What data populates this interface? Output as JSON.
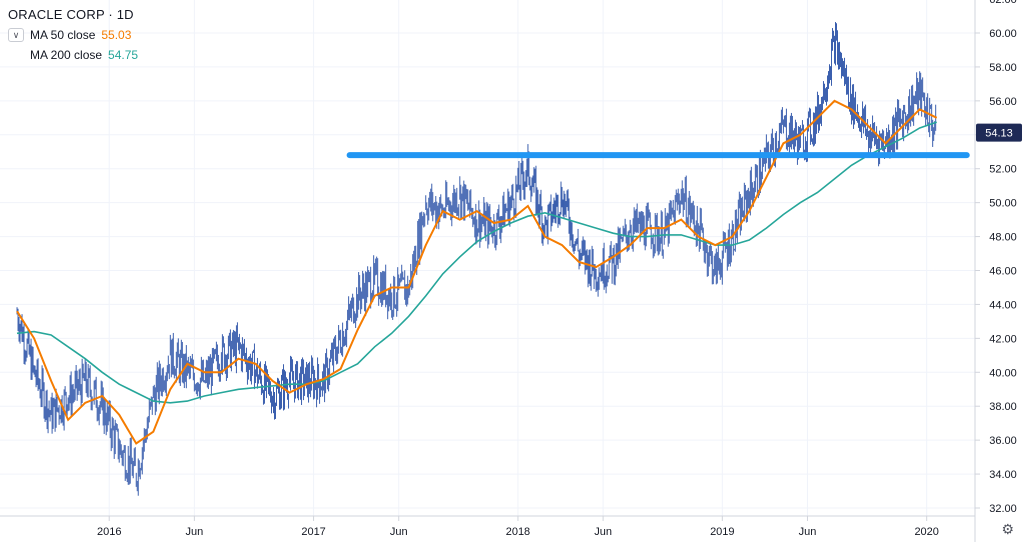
{
  "legend": {
    "title": "ORACLE CORP · 1D",
    "ma50_label": "MA 50 close",
    "ma50_value": "55.03",
    "ma200_label": "MA 200 close",
    "ma200_value": "54.75"
  },
  "price_tag": "54.13",
  "colors": {
    "candles": "#3b5fae",
    "ma50": "#f57c00",
    "ma200": "#26a69a",
    "support_line": "#2196f3",
    "price_tag_bg": "#1e2a56",
    "grid": "#f0f3fa"
  },
  "chart_data": {
    "type": "line",
    "title": "ORACLE CORP · 1D",
    "x_ticks": [
      "2016",
      "Jun",
      "2017",
      "Jun",
      "2018",
      "Jun",
      "2019",
      "Jun",
      "2020"
    ],
    "y_ticks": [
      "32.00",
      "34.00",
      "36.00",
      "38.00",
      "40.00",
      "42.00",
      "44.00",
      "46.00",
      "48.00",
      "50.00",
      "52.00",
      "54.00",
      "56.00",
      "58.00",
      "60.00",
      "62.00"
    ],
    "ylim": [
      32,
      62
    ],
    "xlim": [
      "2015-07",
      "2020-04"
    ],
    "series": [
      {
        "name": "ORACLE CORP",
        "kind": "price",
        "x": [
          "2015-07",
          "2015-08",
          "2015-09",
          "2015-10",
          "2015-11",
          "2015-12",
          "2016-01",
          "2016-02",
          "2016-03",
          "2016-04",
          "2016-05",
          "2016-06",
          "2016-07",
          "2016-08",
          "2016-09",
          "2016-10",
          "2016-11",
          "2016-12",
          "2017-01",
          "2017-02",
          "2017-03",
          "2017-04",
          "2017-05",
          "2017-06",
          "2017-07",
          "2017-08",
          "2017-09",
          "2017-10",
          "2017-11",
          "2017-12",
          "2018-01",
          "2018-02",
          "2018-03",
          "2018-04",
          "2018-05",
          "2018-06",
          "2018-07",
          "2018-08",
          "2018-09",
          "2018-10",
          "2018-11",
          "2018-12",
          "2019-01",
          "2019-02",
          "2019-03",
          "2019-04",
          "2019-05",
          "2019-06",
          "2019-07",
          "2019-08",
          "2019-09",
          "2019-10",
          "2019-11",
          "2019-12",
          "2020-01"
        ],
        "values": [
          43.5,
          40.0,
          37.5,
          38.5,
          39.5,
          38.0,
          35.5,
          34.0,
          38.5,
          41.0,
          40.0,
          39.5,
          41.0,
          41.5,
          40.0,
          38.5,
          39.5,
          39.5,
          39.5,
          42.0,
          44.5,
          45.5,
          44.5,
          45.0,
          50.0,
          49.5,
          50.5,
          49.0,
          48.5,
          50.0,
          52.0,
          48.5,
          50.5,
          47.0,
          46.0,
          46.5,
          48.5,
          48.5,
          48.0,
          50.5,
          48.5,
          46.0,
          48.0,
          50.5,
          52.5,
          54.5,
          53.5,
          55.0,
          59.5,
          56.0,
          54.0,
          53.5,
          55.0,
          56.5,
          54.0
        ]
      },
      {
        "name": "MA 50 close",
        "x": [
          "2015-07",
          "2015-08",
          "2015-09",
          "2015-10",
          "2015-11",
          "2015-12",
          "2016-01",
          "2016-02",
          "2016-03",
          "2016-04",
          "2016-05",
          "2016-06",
          "2016-07",
          "2016-08",
          "2016-09",
          "2016-10",
          "2016-11",
          "2016-12",
          "2017-01",
          "2017-02",
          "2017-03",
          "2017-04",
          "2017-05",
          "2017-06",
          "2017-07",
          "2017-08",
          "2017-09",
          "2017-10",
          "2017-11",
          "2017-12",
          "2018-01",
          "2018-02",
          "2018-03",
          "2018-04",
          "2018-05",
          "2018-06",
          "2018-07",
          "2018-08",
          "2018-09",
          "2018-10",
          "2018-11",
          "2018-12",
          "2019-01",
          "2019-02",
          "2019-03",
          "2019-04",
          "2019-05",
          "2019-06",
          "2019-07",
          "2019-08",
          "2019-09",
          "2019-10",
          "2019-11",
          "2019-12",
          "2020-01"
        ],
        "values": [
          43.6,
          42.0,
          39.5,
          37.2,
          38.2,
          38.6,
          37.5,
          35.8,
          36.5,
          39.0,
          40.5,
          40.0,
          40.0,
          40.8,
          40.5,
          39.5,
          38.8,
          39.3,
          39.6,
          40.2,
          42.5,
          44.5,
          45.0,
          45.0,
          47.5,
          49.5,
          49.0,
          49.5,
          48.8,
          49.0,
          49.8,
          48.0,
          47.5,
          46.5,
          46.2,
          46.8,
          47.5,
          48.5,
          48.5,
          49.0,
          48.0,
          47.5,
          48.0,
          49.5,
          51.5,
          53.5,
          54.0,
          55.0,
          56.0,
          55.5,
          54.5,
          53.5,
          54.5,
          55.5,
          55.0
        ]
      },
      {
        "name": "MA 200 close",
        "x": [
          "2015-07",
          "2015-08",
          "2015-09",
          "2015-10",
          "2015-11",
          "2015-12",
          "2016-01",
          "2016-02",
          "2016-03",
          "2016-04",
          "2016-05",
          "2016-06",
          "2016-07",
          "2016-08",
          "2016-09",
          "2016-10",
          "2016-11",
          "2016-12",
          "2017-01",
          "2017-02",
          "2017-03",
          "2017-04",
          "2017-05",
          "2017-06",
          "2017-07",
          "2017-08",
          "2017-09",
          "2017-10",
          "2017-11",
          "2017-12",
          "2018-01",
          "2018-02",
          "2018-03",
          "2018-04",
          "2018-05",
          "2018-06",
          "2018-07",
          "2018-08",
          "2018-09",
          "2018-10",
          "2018-11",
          "2018-12",
          "2019-01",
          "2019-02",
          "2019-03",
          "2019-04",
          "2019-05",
          "2019-06",
          "2019-07",
          "2019-08",
          "2019-09",
          "2019-10",
          "2019-11",
          "2019-12",
          "2020-01"
        ],
        "values": [
          42.3,
          42.4,
          42.2,
          41.5,
          40.8,
          40.0,
          39.3,
          38.8,
          38.3,
          38.2,
          38.3,
          38.6,
          38.8,
          39.0,
          39.1,
          39.2,
          39.3,
          39.3,
          39.5,
          40.0,
          40.5,
          41.5,
          42.3,
          43.3,
          44.5,
          45.8,
          46.8,
          47.7,
          48.3,
          48.8,
          49.2,
          49.4,
          49.1,
          48.8,
          48.5,
          48.2,
          48.0,
          48.0,
          48.1,
          48.1,
          47.8,
          47.5,
          47.5,
          47.8,
          48.5,
          49.3,
          50.0,
          50.6,
          51.4,
          52.2,
          52.8,
          53.3,
          53.8,
          54.4,
          54.75
        ]
      },
      {
        "name": "Support level",
        "kind": "horizontal_line",
        "x": [
          "2017-03",
          "2020-03"
        ],
        "values": [
          52.8,
          52.8
        ]
      }
    ]
  }
}
